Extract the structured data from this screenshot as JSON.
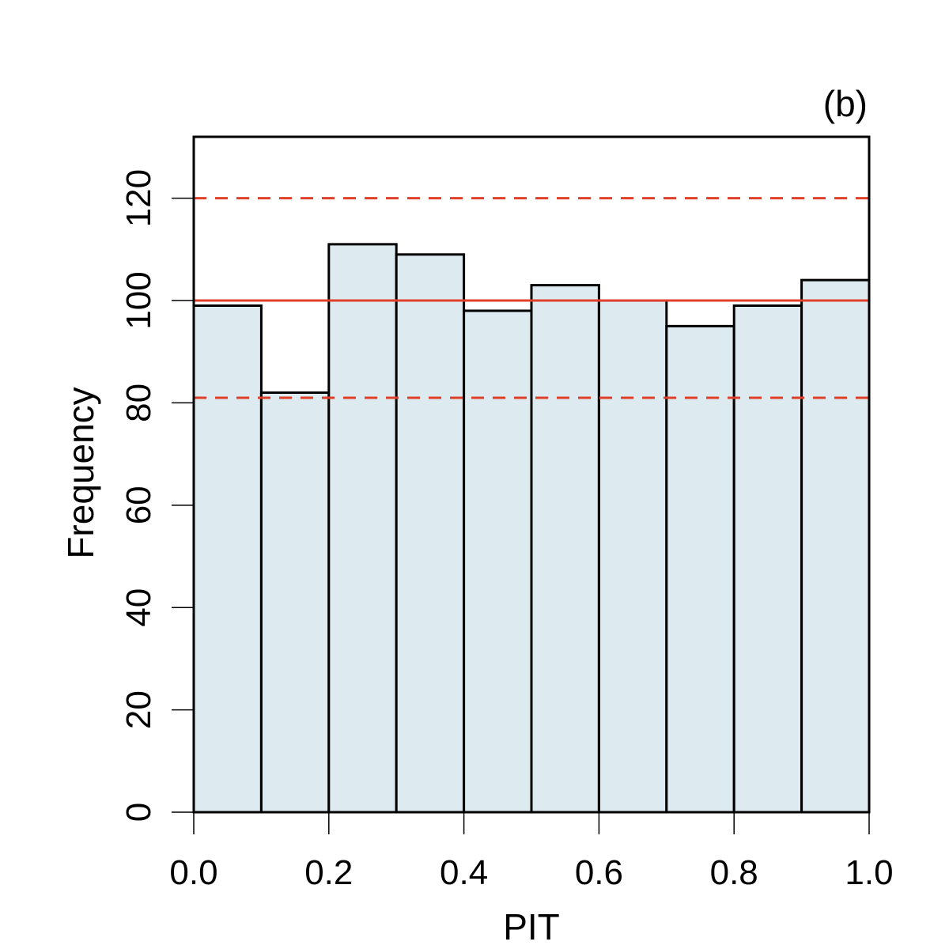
{
  "chart_data": {
    "type": "bar",
    "panel_label": "(b)",
    "xlabel": "PIT",
    "ylabel": "Frequency",
    "bin_edges": [
      0.0,
      0.1,
      0.2,
      0.3,
      0.4,
      0.5,
      0.6,
      0.7,
      0.8,
      0.9,
      1.0
    ],
    "values": [
      99,
      82,
      111,
      109,
      98,
      103,
      100,
      95,
      99,
      104
    ],
    "xlim": [
      0.0,
      1.0
    ],
    "ylim": [
      0,
      132
    ],
    "x_ticks": [
      0.0,
      0.2,
      0.4,
      0.6,
      0.8,
      1.0
    ],
    "x_tick_labels": [
      "0.0",
      "0.2",
      "0.4",
      "0.6",
      "0.8",
      "1.0"
    ],
    "y_ticks": [
      0,
      20,
      40,
      60,
      80,
      100,
      120
    ],
    "y_tick_labels": [
      "0",
      "20",
      "40",
      "60",
      "80",
      "100",
      "120"
    ],
    "reference_lines": [
      {
        "value": 100,
        "style": "solid"
      },
      {
        "value": 120,
        "style": "dashed"
      },
      {
        "value": 81,
        "style": "dashed"
      }
    ],
    "bar_fill": "#ddebf0",
    "bar_stroke": "#000000",
    "reference_color": "#e0402a",
    "grid": false,
    "legend": "none"
  }
}
